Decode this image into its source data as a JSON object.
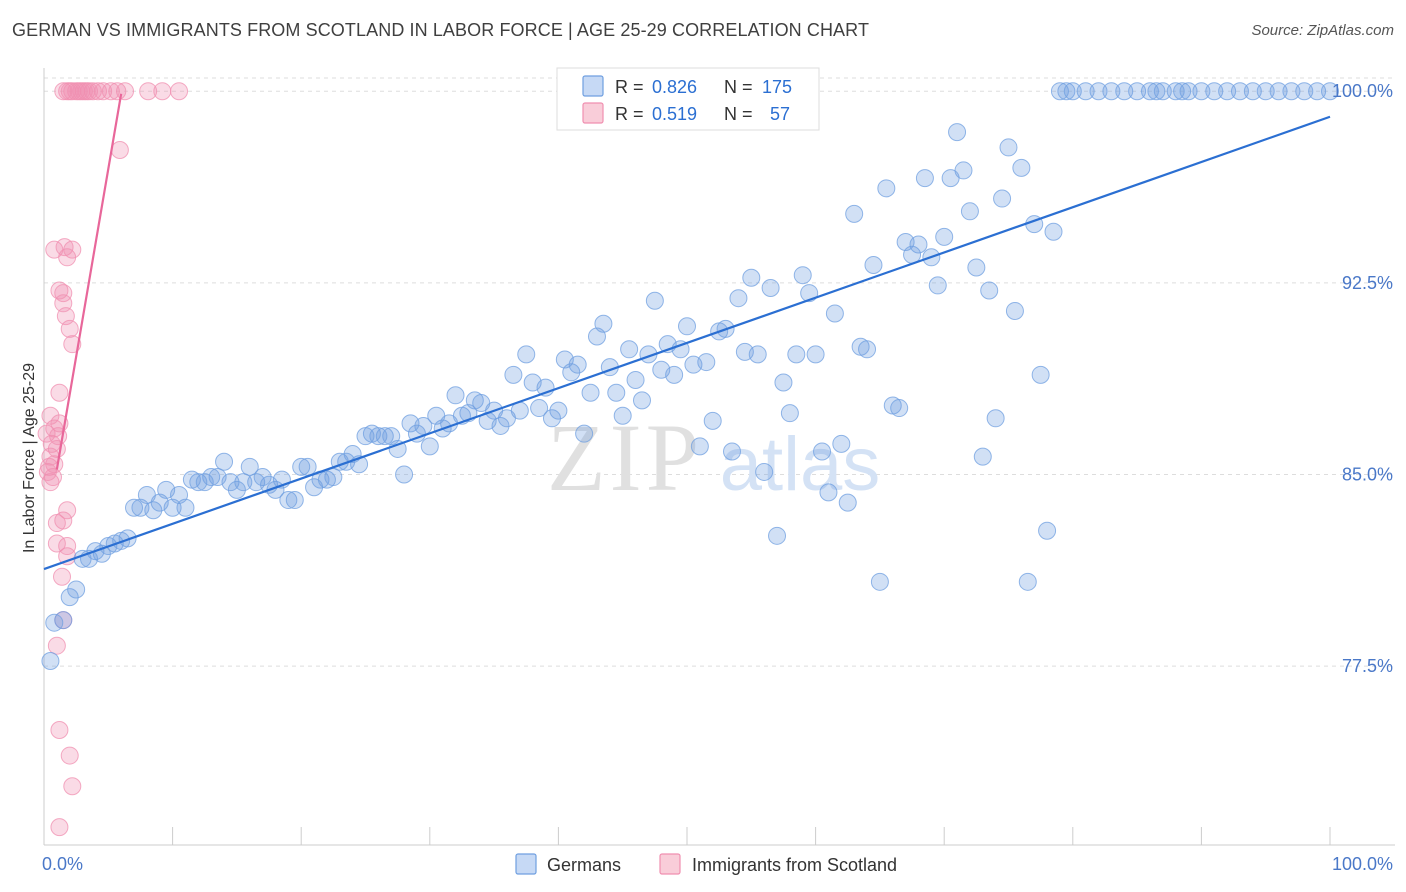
{
  "title": "GERMAN VS IMMIGRANTS FROM SCOTLAND IN LABOR FORCE | AGE 25-29 CORRELATION CHART",
  "source": "Source: ZipAtlas.com",
  "watermark": {
    "zip": "ZIP",
    "atlas": "atlas"
  },
  "colors": {
    "germans": "#6f9fe0",
    "germans_line": "#2b6fd2",
    "scotland": "#f08fb0",
    "scotland_line": "#e8679a",
    "tick_text": "#4a78c8",
    "grid": "#dddddd"
  },
  "legend": {
    "r_label": "R =",
    "n_label": "N =",
    "rows": [
      {
        "r": "0.826",
        "n": "175"
      },
      {
        "r": "0.519",
        "n": "57"
      }
    ]
  },
  "bottom_legend": [
    "Germans",
    "Immigrants from Scotland"
  ],
  "chart_data": {
    "type": "scatter",
    "title": "GERMAN VS IMMIGRANTS FROM SCOTLAND IN LABOR FORCE | AGE 25-29 CORRELATION CHART",
    "xlabel": "",
    "ylabel": "In Labor Force | Age 25-29",
    "xlim": [
      0,
      100
    ],
    "ylim": [
      70.5,
      101.3
    ],
    "x_tick_labels": {
      "left": "0.0%",
      "right": "100.0%"
    },
    "y_ticks": [
      {
        "value": 100.0,
        "label": "100.0%"
      },
      {
        "value": 92.5,
        "label": "92.5%"
      },
      {
        "value": 85.0,
        "label": "85.0%"
      },
      {
        "value": 77.5,
        "label": "77.5%"
      }
    ],
    "series": [
      {
        "name": "Germans",
        "r": 0.826,
        "n": 175,
        "trend": {
          "x": [
            0,
            100
          ],
          "y": [
            81.3,
            99.0
          ]
        },
        "points": [
          [
            0.5,
            77.7
          ],
          [
            0.8,
            79.2
          ],
          [
            1.5,
            79.3
          ],
          [
            2,
            80.2
          ],
          [
            2.5,
            80.5
          ],
          [
            3,
            81.7
          ],
          [
            3.5,
            81.7
          ],
          [
            4,
            82
          ],
          [
            4.5,
            81.9
          ],
          [
            5,
            82.2
          ],
          [
            5.5,
            82.3
          ],
          [
            6,
            82.4
          ],
          [
            6.5,
            82.5
          ],
          [
            7,
            83.7
          ],
          [
            7.5,
            83.7
          ],
          [
            8,
            84.2
          ],
          [
            8.5,
            83.6
          ],
          [
            9,
            83.9
          ],
          [
            9.5,
            84.4
          ],
          [
            10,
            83.7
          ],
          [
            10.5,
            84.2
          ],
          [
            11,
            83.7
          ],
          [
            11.5,
            84.8
          ],
          [
            12,
            84.7
          ],
          [
            12.5,
            84.7
          ],
          [
            13,
            84.9
          ],
          [
            13.5,
            84.9
          ],
          [
            14,
            85.5
          ],
          [
            14.5,
            84.7
          ],
          [
            15,
            84.4
          ],
          [
            15.5,
            84.7
          ],
          [
            16,
            85.3
          ],
          [
            16.5,
            84.7
          ],
          [
            17,
            84.9
          ],
          [
            17.5,
            84.6
          ],
          [
            18,
            84.4
          ],
          [
            18.5,
            84.8
          ],
          [
            19,
            84
          ],
          [
            19.5,
            84
          ],
          [
            20,
            85.3
          ],
          [
            20.5,
            85.3
          ],
          [
            21,
            84.5
          ],
          [
            21.5,
            84.8
          ],
          [
            22,
            84.8
          ],
          [
            22.5,
            84.9
          ],
          [
            23,
            85.5
          ],
          [
            23.5,
            85.5
          ],
          [
            24,
            85.8
          ],
          [
            24.5,
            85.4
          ],
          [
            25,
            86.5
          ],
          [
            25.5,
            86.6
          ],
          [
            26,
            86.5
          ],
          [
            26.5,
            86.5
          ],
          [
            27,
            86.5
          ],
          [
            27.5,
            86.0
          ],
          [
            28,
            85.0
          ],
          [
            28.5,
            87
          ],
          [
            29,
            86.6
          ],
          [
            29.5,
            86.9
          ],
          [
            30,
            86.1
          ],
          [
            30.5,
            87.3
          ],
          [
            31,
            86.8
          ],
          [
            31.5,
            87.0
          ],
          [
            32,
            88.1
          ],
          [
            32.5,
            87.3
          ],
          [
            33,
            87.4
          ],
          [
            33.5,
            87.9
          ],
          [
            34,
            87.8
          ],
          [
            34.5,
            87.1
          ],
          [
            35,
            87.5
          ],
          [
            35.5,
            86.9
          ],
          [
            36,
            87.2
          ],
          [
            36.5,
            88.9
          ],
          [
            37,
            87.5
          ],
          [
            37.5,
            89.7
          ],
          [
            38,
            88.6
          ],
          [
            38.5,
            87.6
          ],
          [
            39,
            88.4
          ],
          [
            39.5,
            87.2
          ],
          [
            40,
            87.5
          ],
          [
            40.5,
            89.5
          ],
          [
            41,
            89.0
          ],
          [
            41.5,
            89.3
          ],
          [
            42,
            86.6
          ],
          [
            42.5,
            88.2
          ],
          [
            43,
            90.4
          ],
          [
            43.5,
            90.9
          ],
          [
            44,
            89.2
          ],
          [
            44.5,
            88.2
          ],
          [
            45,
            87.3
          ],
          [
            45.5,
            89.9
          ],
          [
            46,
            88.7
          ],
          [
            46.5,
            87.9
          ],
          [
            47,
            89.7
          ],
          [
            47.5,
            91.8
          ],
          [
            48,
            89.1
          ],
          [
            48.5,
            90.1
          ],
          [
            49,
            88.9
          ],
          [
            49.5,
            89.9
          ],
          [
            50,
            90.8
          ],
          [
            50.5,
            89.3
          ],
          [
            51,
            86.1
          ],
          [
            51.5,
            89.4
          ],
          [
            52,
            87.1
          ],
          [
            52.5,
            90.6
          ],
          [
            53,
            90.7
          ],
          [
            53.5,
            85.9
          ],
          [
            54,
            91.9
          ],
          [
            54.5,
            89.8
          ],
          [
            55,
            92.7
          ],
          [
            55.5,
            89.7
          ],
          [
            56,
            85.1
          ],
          [
            56.5,
            92.3
          ],
          [
            57,
            82.6
          ],
          [
            57.5,
            88.6
          ],
          [
            58,
            87.4
          ],
          [
            58.5,
            89.7
          ],
          [
            59,
            92.8
          ],
          [
            59.5,
            92.1
          ],
          [
            60,
            89.7
          ],
          [
            60.5,
            85.9
          ],
          [
            61,
            84.3
          ],
          [
            61.5,
            91.3
          ],
          [
            62,
            86.2
          ],
          [
            62.5,
            83.9
          ],
          [
            63,
            95.2
          ],
          [
            63.5,
            90.0
          ],
          [
            64,
            89.9
          ],
          [
            64.5,
            93.2
          ],
          [
            65,
            80.8
          ],
          [
            65.5,
            96.2
          ],
          [
            66,
            87.7
          ],
          [
            66.5,
            87.6
          ],
          [
            67,
            94.1
          ],
          [
            67.5,
            93.6
          ],
          [
            68,
            94.0
          ],
          [
            68.5,
            96.6
          ],
          [
            69,
            93.5
          ],
          [
            69.5,
            92.4
          ],
          [
            70,
            94.3
          ],
          [
            70.5,
            96.6
          ],
          [
            71,
            98.4
          ],
          [
            71.5,
            96.9
          ],
          [
            72,
            95.3
          ],
          [
            72.5,
            93.1
          ],
          [
            73,
            85.7
          ],
          [
            73.5,
            92.2
          ],
          [
            74,
            87.2
          ],
          [
            74.5,
            95.8
          ],
          [
            75,
            97.8
          ],
          [
            75.5,
            91.4
          ],
          [
            76,
            97.0
          ],
          [
            76.5,
            80.8
          ],
          [
            77,
            94.8
          ],
          [
            77.5,
            88.9
          ],
          [
            78,
            82.8
          ],
          [
            78.5,
            94.5
          ],
          [
            79,
            100.0
          ],
          [
            79.5,
            100.0
          ],
          [
            80,
            100.0
          ],
          [
            81,
            100.0
          ],
          [
            82,
            100.0
          ],
          [
            83,
            100.0
          ],
          [
            84,
            100.0
          ],
          [
            85,
            100.0
          ],
          [
            86,
            100.0
          ],
          [
            87,
            100.0
          ],
          [
            88,
            100.0
          ],
          [
            89,
            100.0
          ],
          [
            90,
            100.0
          ],
          [
            91,
            100.0
          ],
          [
            92,
            100.0
          ],
          [
            93,
            100.0
          ],
          [
            94,
            100.0
          ],
          [
            95,
            100.0
          ],
          [
            96,
            100.0
          ],
          [
            97,
            100.0
          ],
          [
            98,
            100.0
          ],
          [
            99,
            100.0
          ],
          [
            100,
            100.0
          ],
          [
            86.5,
            100.0
          ],
          [
            88.5,
            100.0
          ]
        ]
      },
      {
        "name": "Immigrants from Scotland",
        "r": 0.519,
        "n": 57,
        "trend": {
          "x": [
            1.0,
            6.0
          ],
          "y": [
            85.2,
            99.9
          ]
        },
        "points": [
          [
            1.2,
            71.2
          ],
          [
            2.2,
            72.8
          ],
          [
            2,
            74.0
          ],
          [
            1.2,
            75.0
          ],
          [
            1.0,
            78.3
          ],
          [
            1.5,
            79.3
          ],
          [
            1.8,
            81.8
          ],
          [
            1.4,
            81.0
          ],
          [
            1.8,
            82.2
          ],
          [
            1.0,
            82.3
          ],
          [
            1.5,
            83.2
          ],
          [
            1.0,
            83.1
          ],
          [
            1.8,
            83.6
          ],
          [
            0.5,
            84.7
          ],
          [
            0.3,
            85.1
          ],
          [
            0.8,
            85.4
          ],
          [
            0.5,
            85.7
          ],
          [
            1.0,
            86.0
          ],
          [
            0.6,
            86.2
          ],
          [
            1.1,
            86.5
          ],
          [
            0.8,
            86.8
          ],
          [
            1.2,
            87.0
          ],
          [
            0.5,
            87.3
          ],
          [
            1.2,
            88.2
          ],
          [
            2.2,
            90.1
          ],
          [
            2.0,
            90.7
          ],
          [
            1.7,
            91.2
          ],
          [
            1.5,
            91.7
          ],
          [
            1.2,
            92.2
          ],
          [
            1.5,
            92.1
          ],
          [
            1.8,
            93.5
          ],
          [
            2.2,
            93.8
          ],
          [
            1.6,
            93.9
          ],
          [
            0.8,
            93.8
          ],
          [
            5.9,
            97.7
          ],
          [
            1.5,
            100
          ],
          [
            1.8,
            100
          ],
          [
            2.0,
            100
          ],
          [
            2.2,
            100
          ],
          [
            2.5,
            100
          ],
          [
            2.7,
            100
          ],
          [
            2.9,
            100
          ],
          [
            3.1,
            100
          ],
          [
            3.3,
            100
          ],
          [
            3.5,
            100
          ],
          [
            3.8,
            100
          ],
          [
            4.2,
            100
          ],
          [
            4.6,
            100
          ],
          [
            5.2,
            100
          ],
          [
            5.7,
            100
          ],
          [
            6.3,
            100
          ],
          [
            8.1,
            100
          ],
          [
            9.2,
            100
          ],
          [
            10.5,
            100
          ],
          [
            0.2,
            86.6
          ],
          [
            0.4,
            85.3
          ],
          [
            0.7,
            84.9
          ]
        ]
      }
    ]
  }
}
